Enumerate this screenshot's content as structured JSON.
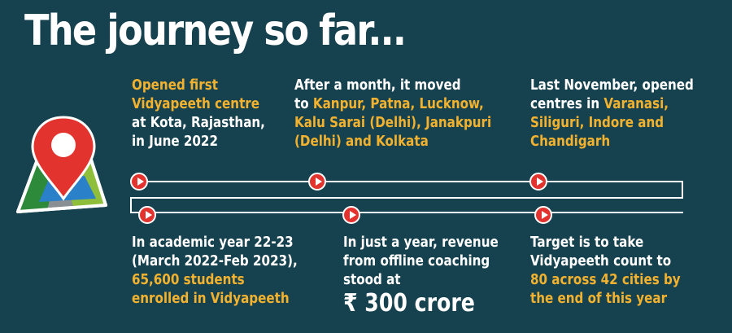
{
  "title": "The journey so far...",
  "milestones_top": [
    {
      "lines": [
        [
          {
            "t": "Opened first",
            "y": true
          }
        ],
        [
          {
            "t": "Vidyapeeth centre",
            "y": true
          }
        ],
        [
          {
            "t": "at Kota, Rajasthan,",
            "y": false
          }
        ],
        [
          {
            "t": "in June 2022",
            "y": false
          }
        ]
      ]
    },
    {
      "lines": [
        [
          {
            "t": "After a month, it moved",
            "y": false
          }
        ],
        [
          {
            "t": "to ",
            "y": false
          },
          {
            "t": "Kanpur, Patna, Lucknow,",
            "y": true
          }
        ],
        [
          {
            "t": "Kalu Sarai (Delhi), Janakpuri",
            "y": true
          }
        ],
        [
          {
            "t": "(Delhi) and Kolkata",
            "y": true
          }
        ]
      ]
    },
    {
      "lines": [
        [
          {
            "t": "Last November, opened",
            "y": false
          }
        ],
        [
          {
            "t": "centres in ",
            "y": false
          },
          {
            "t": "Varanasi,",
            "y": true
          }
        ],
        [
          {
            "t": "Siliguri, Indore and",
            "y": true
          }
        ],
        [
          {
            "t": "Chandigarh",
            "y": true
          }
        ]
      ]
    }
  ],
  "milestones_bottom": [
    {
      "lines": [
        [
          {
            "t": "In academic year 22-23",
            "y": false
          }
        ],
        [
          {
            "t": "(March 2022-Feb 2023),",
            "y": false
          }
        ],
        [
          {
            "t": "65,600 students",
            "y": true
          }
        ],
        [
          {
            "t": "enrolled in Vidyapeeth",
            "y": true
          }
        ]
      ]
    },
    {
      "lines": [
        [
          {
            "t": "In just a year, revenue",
            "y": false
          }
        ],
        [
          {
            "t": "from offline coaching",
            "y": false
          }
        ],
        [
          {
            "t": "stood at",
            "y": false
          }
        ]
      ],
      "big": "₹ 300 crore"
    },
    {
      "lines": [
        [
          {
            "t": "Target is to take",
            "y": false
          }
        ],
        [
          {
            "t": "Vidyapeeth count to",
            "y": false
          }
        ],
        [
          {
            "t": "80 across 42 cities by",
            "y": true
          }
        ],
        [
          {
            "t": "the end of this year",
            "y": true
          }
        ]
      ]
    }
  ],
  "colors": {
    "background": "#16424f",
    "highlight": "#f2b22f",
    "marker": "#e2332e",
    "text": "#ffffff"
  },
  "icons": [
    "map-pin-icon",
    "play-marker-icon"
  ]
}
